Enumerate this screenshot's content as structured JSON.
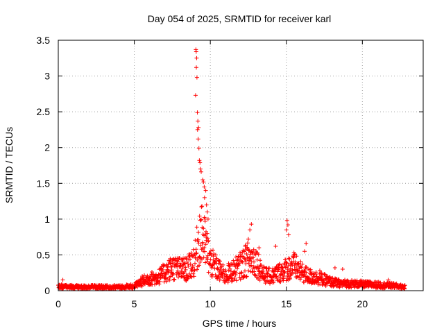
{
  "chart_data": {
    "type": "scatter",
    "marker": "plus",
    "title": "Day 054 of 2025, SRMTID for receiver karl",
    "xlabel": "GPS time / hours",
    "ylabel": "SRMTID / TECUs",
    "xlim": [
      0,
      24
    ],
    "ylim": [
      0,
      3.5
    ],
    "xticks": [
      0,
      5,
      10,
      15,
      20
    ],
    "xtick_labels": [
      "0",
      "5",
      "10",
      "15",
      "20"
    ],
    "yticks": [
      0,
      0.5,
      1,
      1.5,
      2,
      2.5,
      3,
      3.5
    ],
    "ytick_labels": [
      "0",
      "0.5",
      "1",
      "1.5",
      "2",
      "2.5",
      "3",
      "3.5"
    ],
    "grid": true,
    "color": "#ff0000",
    "series": [
      {
        "name": "SRMTID",
        "baseline": [
          [
            0.0,
            0.06
          ],
          [
            1.0,
            0.05
          ],
          [
            2.0,
            0.05
          ],
          [
            3.0,
            0.05
          ],
          [
            4.0,
            0.05
          ],
          [
            5.0,
            0.06
          ],
          [
            5.5,
            0.13
          ],
          [
            6.0,
            0.17
          ],
          [
            6.5,
            0.18
          ],
          [
            7.0,
            0.25
          ],
          [
            7.5,
            0.32
          ],
          [
            8.0,
            0.3
          ],
          [
            8.5,
            0.3
          ],
          [
            9.0,
            0.45
          ],
          [
            9.3,
            0.8
          ],
          [
            9.6,
            0.7
          ],
          [
            10.0,
            0.4
          ],
          [
            10.5,
            0.3
          ],
          [
            11.0,
            0.2
          ],
          [
            11.5,
            0.28
          ],
          [
            12.0,
            0.35
          ],
          [
            12.5,
            0.45
          ],
          [
            13.0,
            0.42
          ],
          [
            13.5,
            0.22
          ],
          [
            14.0,
            0.2
          ],
          [
            14.5,
            0.25
          ],
          [
            15.0,
            0.3
          ],
          [
            15.5,
            0.35
          ],
          [
            16.0,
            0.25
          ],
          [
            16.5,
            0.2
          ],
          [
            17.0,
            0.18
          ],
          [
            17.5,
            0.15
          ],
          [
            18.0,
            0.12
          ],
          [
            18.5,
            0.1
          ],
          [
            19.0,
            0.1
          ],
          [
            20.0,
            0.09
          ],
          [
            21.0,
            0.08
          ],
          [
            22.0,
            0.07
          ],
          [
            22.8,
            0.05
          ]
        ],
        "peaks": [
          [
            9.05,
            3.37
          ],
          [
            9.07,
            3.34
          ],
          [
            9.1,
            3.25
          ],
          [
            9.08,
            3.12
          ],
          [
            9.12,
            2.98
          ],
          [
            9.03,
            2.73
          ],
          [
            9.15,
            2.49
          ],
          [
            9.18,
            2.37
          ],
          [
            9.22,
            2.28
          ],
          [
            9.16,
            2.25
          ],
          [
            9.2,
            2.12
          ],
          [
            9.25,
            1.99
          ],
          [
            9.28,
            1.82
          ],
          [
            9.32,
            1.79
          ],
          [
            9.35,
            1.7
          ],
          [
            9.4,
            1.66
          ],
          [
            9.5,
            1.55
          ],
          [
            9.55,
            1.52
          ],
          [
            9.6,
            1.45
          ],
          [
            9.7,
            1.4
          ],
          [
            9.62,
            1.3
          ],
          [
            9.75,
            1.2
          ],
          [
            9.8,
            1.1
          ],
          [
            9.85,
            1.0
          ],
          [
            9.45,
            1.18
          ],
          [
            12.7,
            0.93
          ],
          [
            12.6,
            0.85
          ],
          [
            12.5,
            0.72
          ],
          [
            12.3,
            0.62
          ],
          [
            15.05,
            0.98
          ],
          [
            15.1,
            0.92
          ],
          [
            15.0,
            0.85
          ],
          [
            15.15,
            0.78
          ],
          [
            16.3,
            0.66
          ],
          [
            16.2,
            0.55
          ],
          [
            14.3,
            0.62
          ],
          [
            13.2,
            0.6
          ],
          [
            7.5,
            0.43
          ],
          [
            7.8,
            0.42
          ],
          [
            8.2,
            0.4
          ],
          [
            11.2,
            0.38
          ],
          [
            18.2,
            0.32
          ],
          [
            18.7,
            0.3
          ],
          [
            17.2,
            0.28
          ],
          [
            21.7,
            0.15
          ],
          [
            0.3,
            0.15
          ]
        ],
        "point_count_approx": 1500
      }
    ]
  }
}
